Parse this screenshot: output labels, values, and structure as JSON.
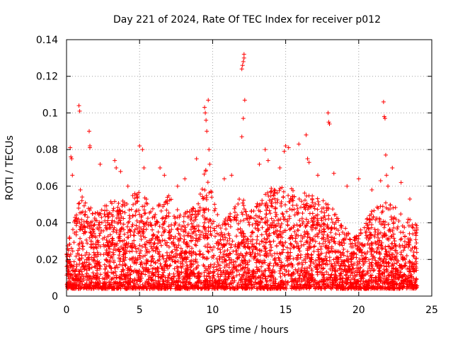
{
  "chart_data": {
    "type": "scatter",
    "title": "Day 221 of 2024, Rate Of TEC Index for receiver p012",
    "xlabel": "GPS time / hours",
    "ylabel": "ROTI / TECUs",
    "xlim": [
      0,
      25
    ],
    "ylim": [
      0,
      0.14
    ],
    "x_ticks": [
      0,
      5,
      10,
      15,
      20,
      25
    ],
    "x_tick_labels": [
      "0",
      "5",
      "10",
      "15",
      "20",
      "25"
    ],
    "y_ticks": [
      0,
      0.02,
      0.04,
      0.06,
      0.08,
      0.1,
      0.12,
      0.14
    ],
    "y_tick_labels": [
      "0",
      "0.02",
      "0.04",
      "0.06",
      "0.08",
      "0.1",
      "0.12",
      "0.14"
    ],
    "grid": true,
    "marker": "plus",
    "marker_color": "#ff0000",
    "series": [
      {
        "name": "ROTI",
        "x": [
          0.25,
          0.3,
          0.35,
          0.4,
          0.85,
          0.9,
          0.95,
          1.55,
          1.6,
          1.6,
          2.3,
          3.3,
          3.4,
          3.7,
          4.2,
          5.0,
          5.2,
          5.3,
          6.4,
          6.7,
          7.6,
          8.1,
          8.9,
          9.45,
          9.5,
          9.55,
          9.6,
          9.7,
          9.75,
          9.8,
          10.8,
          11.3,
          12.0,
          12.05,
          12.1,
          12.15,
          12.15,
          12.2,
          12.1,
          12.0,
          13.2,
          13.6,
          13.8,
          14.6,
          14.9,
          15.0,
          15.2,
          15.9,
          16.4,
          16.5,
          16.6,
          17.2,
          17.9,
          17.95,
          18.0,
          18.3,
          19.2,
          20.0,
          20.9,
          21.5,
          21.7,
          21.75,
          21.8,
          21.85,
          21.9,
          22.0,
          22.3,
          22.9,
          23.5
        ],
        "y": [
          0.081,
          0.076,
          0.075,
          0.066,
          0.104,
          0.101,
          0.058,
          0.09,
          0.082,
          0.081,
          0.072,
          0.074,
          0.07,
          0.068,
          0.06,
          0.082,
          0.08,
          0.07,
          0.07,
          0.066,
          0.06,
          0.064,
          0.075,
          0.103,
          0.1,
          0.096,
          0.09,
          0.107,
          0.08,
          0.072,
          0.064,
          0.066,
          0.124,
          0.126,
          0.128,
          0.13,
          0.132,
          0.107,
          0.097,
          0.087,
          0.072,
          0.08,
          0.074,
          0.07,
          0.079,
          0.082,
          0.081,
          0.083,
          0.088,
          0.075,
          0.073,
          0.066,
          0.1,
          0.095,
          0.094,
          0.067,
          0.06,
          0.064,
          0.058,
          0.063,
          0.106,
          0.098,
          0.097,
          0.077,
          0.066,
          0.06,
          0.07,
          0.062,
          0.053
        ]
      }
    ]
  }
}
